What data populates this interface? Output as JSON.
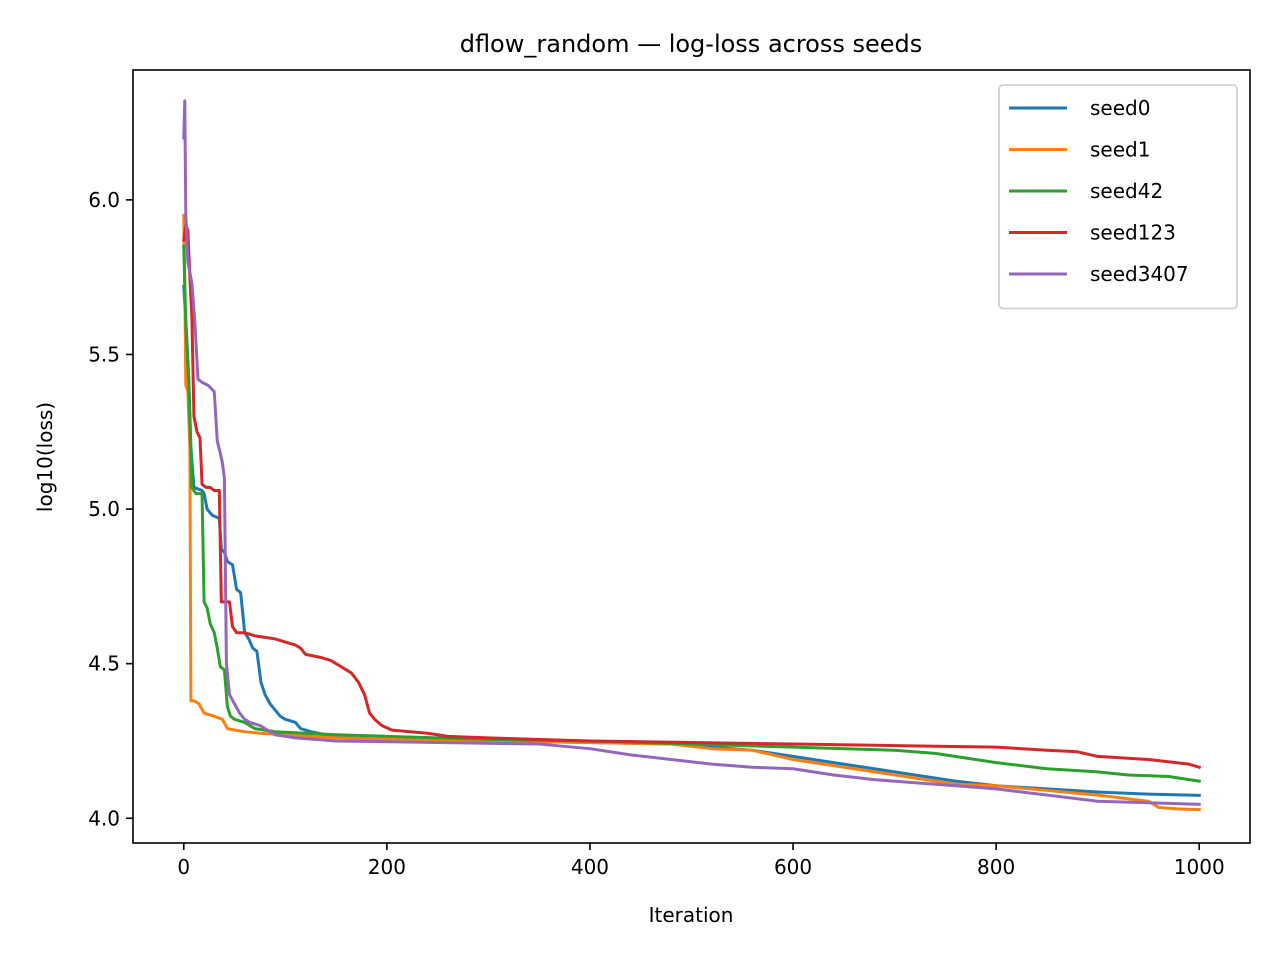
{
  "chart_data": {
    "type": "line",
    "title": "dflow_random — log-loss across seeds",
    "xlabel": "Iteration",
    "ylabel": "log10(loss)",
    "xlim": [
      -50,
      1050
    ],
    "ylim": [
      3.92,
      6.42
    ],
    "xticks": [
      0,
      200,
      400,
      600,
      800,
      1000
    ],
    "yticks": [
      4.0,
      4.5,
      5.0,
      5.5,
      6.0
    ],
    "xtick_labels": [
      "0",
      "200",
      "400",
      "600",
      "800",
      "1000"
    ],
    "ytick_labels": [
      "4.0",
      "4.5",
      "5.0",
      "5.5",
      "6.0"
    ],
    "grid": false,
    "legend_position": "top-right",
    "series": [
      {
        "name": "seed0",
        "color": "#1f77b4",
        "points": [
          [
            0,
            5.72
          ],
          [
            3,
            5.55
          ],
          [
            5,
            5.42
          ],
          [
            7,
            5.2
          ],
          [
            10,
            5.07
          ],
          [
            18,
            5.06
          ],
          [
            20,
            5.05
          ],
          [
            23,
            5.0
          ],
          [
            28,
            4.98
          ],
          [
            35,
            4.97
          ],
          [
            37,
            4.87
          ],
          [
            40,
            4.86
          ],
          [
            43,
            4.83
          ],
          [
            48,
            4.82
          ],
          [
            52,
            4.74
          ],
          [
            56,
            4.73
          ],
          [
            60,
            4.6
          ],
          [
            64,
            4.58
          ],
          [
            68,
            4.55
          ],
          [
            72,
            4.54
          ],
          [
            76,
            4.44
          ],
          [
            80,
            4.4
          ],
          [
            85,
            4.37
          ],
          [
            90,
            4.35
          ],
          [
            95,
            4.33
          ],
          [
            100,
            4.32
          ],
          [
            110,
            4.31
          ],
          [
            115,
            4.29
          ],
          [
            125,
            4.28
          ],
          [
            140,
            4.27
          ],
          [
            160,
            4.26
          ],
          [
            200,
            4.255
          ],
          [
            300,
            4.25
          ],
          [
            400,
            4.245
          ],
          [
            480,
            4.24
          ],
          [
            520,
            4.23
          ],
          [
            560,
            4.22
          ],
          [
            600,
            4.2
          ],
          [
            640,
            4.18
          ],
          [
            680,
            4.16
          ],
          [
            720,
            4.14
          ],
          [
            760,
            4.12
          ],
          [
            800,
            4.105
          ],
          [
            850,
            4.095
          ],
          [
            900,
            4.085
          ],
          [
            950,
            4.078
          ],
          [
            1000,
            4.074
          ]
        ]
      },
      {
        "name": "seed1",
        "color": "#ff7f0e",
        "points": [
          [
            0,
            5.95
          ],
          [
            1,
            5.72
          ],
          [
            2,
            5.4
          ],
          [
            4,
            5.38
          ],
          [
            6,
            5.2
          ],
          [
            7,
            4.38
          ],
          [
            10,
            4.38
          ],
          [
            15,
            4.37
          ],
          [
            20,
            4.34
          ],
          [
            30,
            4.33
          ],
          [
            38,
            4.32
          ],
          [
            43,
            4.29
          ],
          [
            50,
            4.285
          ],
          [
            60,
            4.28
          ],
          [
            75,
            4.275
          ],
          [
            100,
            4.27
          ],
          [
            150,
            4.26
          ],
          [
            200,
            4.255
          ],
          [
            300,
            4.25
          ],
          [
            400,
            4.245
          ],
          [
            480,
            4.24
          ],
          [
            520,
            4.225
          ],
          [
            560,
            4.22
          ],
          [
            600,
            4.19
          ],
          [
            640,
            4.17
          ],
          [
            680,
            4.15
          ],
          [
            720,
            4.13
          ],
          [
            760,
            4.11
          ],
          [
            800,
            4.105
          ],
          [
            850,
            4.09
          ],
          [
            900,
            4.075
          ],
          [
            950,
            4.055
          ],
          [
            960,
            4.035
          ],
          [
            980,
            4.03
          ],
          [
            1000,
            4.028
          ]
        ]
      },
      {
        "name": "seed42",
        "color": "#2ca02c",
        "points": [
          [
            0,
            5.85
          ],
          [
            2,
            5.6
          ],
          [
            5,
            5.4
          ],
          [
            8,
            5.07
          ],
          [
            12,
            5.05
          ],
          [
            18,
            5.05
          ],
          [
            20,
            4.7
          ],
          [
            23,
            4.68
          ],
          [
            26,
            4.63
          ],
          [
            30,
            4.6
          ],
          [
            33,
            4.55
          ],
          [
            36,
            4.49
          ],
          [
            40,
            4.48
          ],
          [
            43,
            4.36
          ],
          [
            46,
            4.33
          ],
          [
            50,
            4.32
          ],
          [
            60,
            4.31
          ],
          [
            70,
            4.29
          ],
          [
            90,
            4.28
          ],
          [
            120,
            4.275
          ],
          [
            150,
            4.27
          ],
          [
            200,
            4.265
          ],
          [
            300,
            4.255
          ],
          [
            400,
            4.25
          ],
          [
            500,
            4.24
          ],
          [
            600,
            4.23
          ],
          [
            700,
            4.22
          ],
          [
            740,
            4.21
          ],
          [
            770,
            4.195
          ],
          [
            800,
            4.18
          ],
          [
            850,
            4.16
          ],
          [
            900,
            4.15
          ],
          [
            930,
            4.14
          ],
          [
            970,
            4.135
          ],
          [
            1000,
            4.12
          ]
        ]
      },
      {
        "name": "seed123",
        "color": "#d62728",
        "points": [
          [
            0,
            5.87
          ],
          [
            2,
            5.92
          ],
          [
            4,
            5.9
          ],
          [
            6,
            5.75
          ],
          [
            8,
            5.62
          ],
          [
            10,
            5.3
          ],
          [
            13,
            5.25
          ],
          [
            16,
            5.23
          ],
          [
            18,
            5.08
          ],
          [
            22,
            5.07
          ],
          [
            26,
            5.07
          ],
          [
            30,
            5.06
          ],
          [
            35,
            5.06
          ],
          [
            37,
            4.7
          ],
          [
            45,
            4.7
          ],
          [
            48,
            4.62
          ],
          [
            52,
            4.6
          ],
          [
            60,
            4.6
          ],
          [
            70,
            4.59
          ],
          [
            80,
            4.585
          ],
          [
            90,
            4.58
          ],
          [
            100,
            4.57
          ],
          [
            110,
            4.56
          ],
          [
            115,
            4.55
          ],
          [
            120,
            4.53
          ],
          [
            135,
            4.52
          ],
          [
            145,
            4.51
          ],
          [
            155,
            4.49
          ],
          [
            165,
            4.47
          ],
          [
            172,
            4.44
          ],
          [
            178,
            4.4
          ],
          [
            183,
            4.34
          ],
          [
            188,
            4.32
          ],
          [
            195,
            4.3
          ],
          [
            205,
            4.285
          ],
          [
            240,
            4.275
          ],
          [
            260,
            4.265
          ],
          [
            300,
            4.26
          ],
          [
            400,
            4.25
          ],
          [
            500,
            4.245
          ],
          [
            600,
            4.24
          ],
          [
            700,
            4.235
          ],
          [
            800,
            4.23
          ],
          [
            850,
            4.22
          ],
          [
            880,
            4.215
          ],
          [
            900,
            4.2
          ],
          [
            950,
            4.19
          ],
          [
            990,
            4.175
          ],
          [
            1000,
            4.165
          ]
        ]
      },
      {
        "name": "seed3407",
        "color": "#9467bd",
        "points": [
          [
            0,
            6.2
          ],
          [
            1,
            6.32
          ],
          [
            2,
            5.95
          ],
          [
            4,
            5.8
          ],
          [
            8,
            5.73
          ],
          [
            11,
            5.6
          ],
          [
            14,
            5.42
          ],
          [
            18,
            5.41
          ],
          [
            24,
            5.4
          ],
          [
            30,
            5.38
          ],
          [
            33,
            5.22
          ],
          [
            36,
            5.18
          ],
          [
            38,
            5.15
          ],
          [
            40,
            5.1
          ],
          [
            42,
            4.5
          ],
          [
            45,
            4.4
          ],
          [
            50,
            4.37
          ],
          [
            55,
            4.34
          ],
          [
            60,
            4.32
          ],
          [
            65,
            4.31
          ],
          [
            75,
            4.3
          ],
          [
            85,
            4.28
          ],
          [
            90,
            4.27
          ],
          [
            110,
            4.26
          ],
          [
            150,
            4.25
          ],
          [
            250,
            4.245
          ],
          [
            350,
            4.24
          ],
          [
            400,
            4.225
          ],
          [
            440,
            4.205
          ],
          [
            480,
            4.19
          ],
          [
            520,
            4.175
          ],
          [
            560,
            4.165
          ],
          [
            600,
            4.16
          ],
          [
            640,
            4.14
          ],
          [
            680,
            4.125
          ],
          [
            720,
            4.115
          ],
          [
            760,
            4.105
          ],
          [
            800,
            4.095
          ],
          [
            850,
            4.075
          ],
          [
            900,
            4.055
          ],
          [
            950,
            4.05
          ],
          [
            1000,
            4.045
          ]
        ]
      }
    ]
  }
}
